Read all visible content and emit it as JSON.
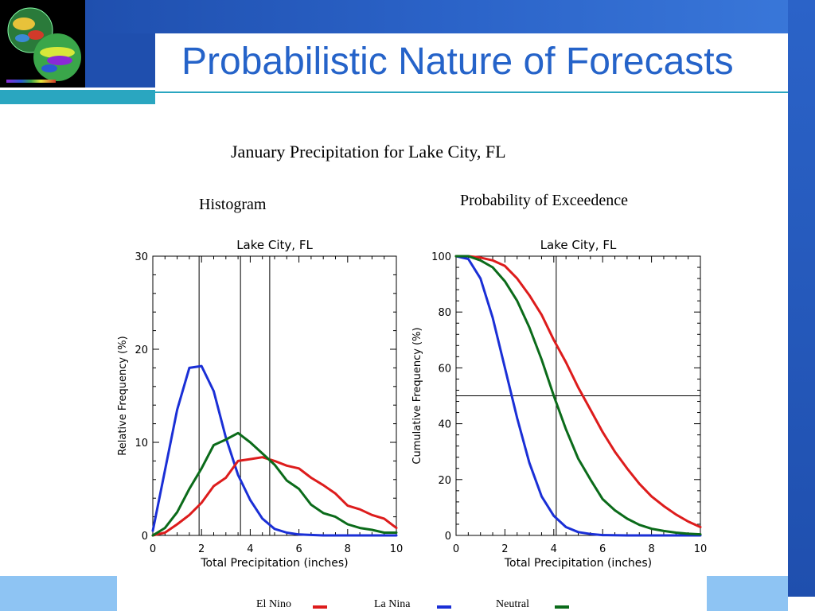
{
  "slide": {
    "title": "Probabilistic Nature of Forecasts",
    "colors": {
      "header_blue": "#2b63c8",
      "accent_teal": "#2aa6c0",
      "title_text": "#2563c9"
    },
    "thumbnail_icon": "globe-sst-image-icon"
  },
  "figure": {
    "main_title": "January Precipitation for Lake City, FL",
    "left_heading": "Histogram",
    "right_heading": "Probability of Exceedence"
  },
  "legend": [
    {
      "name": "El Nino",
      "color": "#dd1c1c"
    },
    {
      "name": "La Nina",
      "color": "#1a2fd6"
    },
    {
      "name": "Neutral",
      "color": "#0b6b1a"
    }
  ],
  "chart_data": [
    {
      "type": "line",
      "title": "Lake City, FL",
      "xlabel": "Total Precipitation (inches)",
      "ylabel": "Relative Frequency (%)",
      "xlim": [
        0,
        10
      ],
      "ylim": [
        0,
        30
      ],
      "xticks": [
        0,
        2,
        4,
        6,
        8,
        10
      ],
      "yticks": [
        0,
        10,
        20,
        30
      ],
      "vlines": [
        1.9,
        3.6,
        4.8
      ],
      "grid": false,
      "series": [
        {
          "name": "La Nina",
          "color": "#1a2fd6",
          "points": [
            [
              0,
              0.5
            ],
            [
              0.5,
              7
            ],
            [
              1,
              13.5
            ],
            [
              1.5,
              18
            ],
            [
              2,
              18.2
            ],
            [
              2.5,
              15.5
            ],
            [
              3,
              10.5
            ],
            [
              3.5,
              6.5
            ],
            [
              4,
              3.8
            ],
            [
              4.5,
              1.8
            ],
            [
              5,
              0.7
            ],
            [
              5.5,
              0.3
            ],
            [
              6,
              0.1
            ],
            [
              7,
              0
            ],
            [
              8,
              0
            ],
            [
              10,
              0
            ]
          ]
        },
        {
          "name": "El Nino",
          "color": "#dd1c1c",
          "points": [
            [
              0,
              0
            ],
            [
              0.5,
              0.3
            ],
            [
              1,
              1.2
            ],
            [
              1.5,
              2.2
            ],
            [
              2,
              3.5
            ],
            [
              2.5,
              5.3
            ],
            [
              3,
              6.2
            ],
            [
              3.5,
              8
            ],
            [
              4,
              8.2
            ],
            [
              4.5,
              8.4
            ],
            [
              5,
              8
            ],
            [
              5.5,
              7.5
            ],
            [
              6,
              7.2
            ],
            [
              6.5,
              6.2
            ],
            [
              7,
              5.4
            ],
            [
              7.5,
              4.5
            ],
            [
              8,
              3.2
            ],
            [
              8.5,
              2.8
            ],
            [
              9,
              2.2
            ],
            [
              9.5,
              1.8
            ],
            [
              10,
              0.8
            ]
          ]
        },
        {
          "name": "Neutral",
          "color": "#0b6b1a",
          "points": [
            [
              0,
              0
            ],
            [
              0.5,
              0.8
            ],
            [
              1,
              2.5
            ],
            [
              1.5,
              5
            ],
            [
              2,
              7.2
            ],
            [
              2.5,
              9.7
            ],
            [
              3,
              10.3
            ],
            [
              3.5,
              11
            ],
            [
              4,
              10
            ],
            [
              4.5,
              8.8
            ],
            [
              5,
              7.6
            ],
            [
              5.5,
              5.9
            ],
            [
              6,
              5
            ],
            [
              6.5,
              3.3
            ],
            [
              7,
              2.4
            ],
            [
              7.5,
              2
            ],
            [
              8,
              1.2
            ],
            [
              8.5,
              0.8
            ],
            [
              9,
              0.6
            ],
            [
              9.5,
              0.3
            ],
            [
              10,
              0.3
            ]
          ]
        }
      ]
    },
    {
      "type": "line",
      "title": "Lake City, FL",
      "xlabel": "Total Precipitation (inches)",
      "ylabel": "Cumulative Frequency (%)",
      "xlim": [
        0,
        10
      ],
      "ylim": [
        0,
        100
      ],
      "xticks": [
        0,
        2,
        4,
        6,
        8,
        10
      ],
      "yticks": [
        0,
        20,
        40,
        60,
        80,
        100
      ],
      "vlines": [
        4.1
      ],
      "hlines": [
        50
      ],
      "grid": false,
      "series": [
        {
          "name": "La Nina",
          "color": "#1a2fd6",
          "points": [
            [
              0,
              100
            ],
            [
              0.5,
              99
            ],
            [
              1,
              92
            ],
            [
              1.5,
              78
            ],
            [
              2,
              60
            ],
            [
              2.5,
              42
            ],
            [
              3,
              26
            ],
            [
              3.5,
              14
            ],
            [
              4,
              7
            ],
            [
              4.5,
              3
            ],
            [
              5,
              1.2
            ],
            [
              5.5,
              0.5
            ],
            [
              6,
              0.1
            ],
            [
              7,
              0
            ],
            [
              10,
              0
            ]
          ]
        },
        {
          "name": "El Nino",
          "color": "#dd1c1c",
          "points": [
            [
              0,
              100
            ],
            [
              0.5,
              100
            ],
            [
              1,
              99.5
            ],
            [
              1.5,
              98.5
            ],
            [
              2,
              96.5
            ],
            [
              2.5,
              92
            ],
            [
              3,
              86
            ],
            [
              3.5,
              79
            ],
            [
              4,
              70
            ],
            [
              4.5,
              62
            ],
            [
              5,
              53
            ],
            [
              5.5,
              45
            ],
            [
              6,
              37
            ],
            [
              6.5,
              30
            ],
            [
              7,
              24
            ],
            [
              7.5,
              18.5
            ],
            [
              8,
              14
            ],
            [
              8.5,
              10.5
            ],
            [
              9,
              7.5
            ],
            [
              9.5,
              5
            ],
            [
              10,
              3
            ]
          ]
        },
        {
          "name": "Neutral",
          "color": "#0b6b1a",
          "points": [
            [
              0,
              100
            ],
            [
              0.5,
              100
            ],
            [
              1,
              98.5
            ],
            [
              1.5,
              96
            ],
            [
              2,
              91
            ],
            [
              2.5,
              84
            ],
            [
              3,
              74.5
            ],
            [
              3.5,
              63
            ],
            [
              4,
              50
            ],
            [
              4.5,
              38
            ],
            [
              5,
              27.5
            ],
            [
              5.5,
              20
            ],
            [
              6,
              13
            ],
            [
              6.5,
              9
            ],
            [
              7,
              6
            ],
            [
              7.5,
              3.8
            ],
            [
              8,
              2.4
            ],
            [
              8.5,
              1.6
            ],
            [
              9,
              1
            ],
            [
              9.5,
              0.6
            ],
            [
              10,
              0.4
            ]
          ]
        }
      ]
    }
  ]
}
